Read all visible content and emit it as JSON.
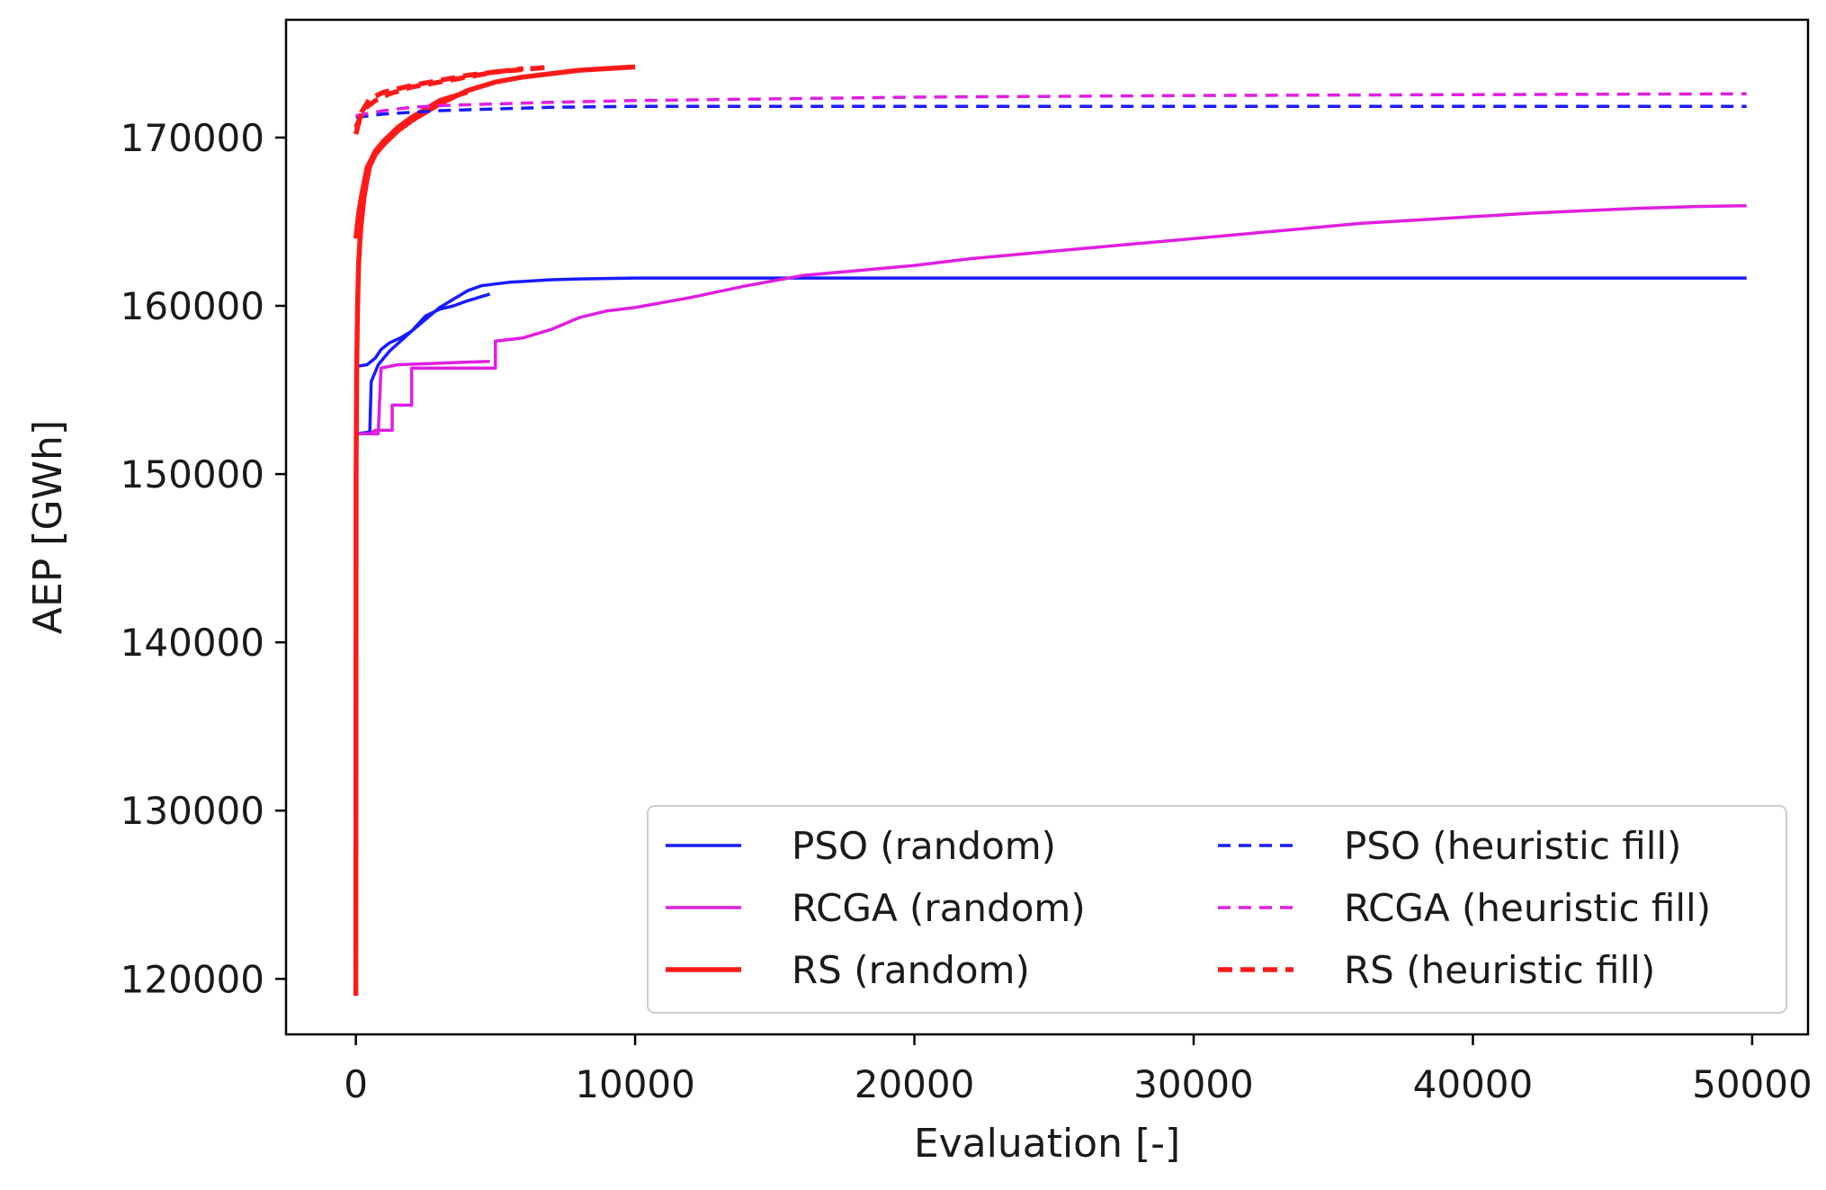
{
  "chart_data": {
    "type": "line",
    "title": "",
    "xlabel": "Evaluation [-]",
    "ylabel": "AEP [GWh]",
    "xlim": [
      -2500,
      52000
    ],
    "ylim": [
      116700,
      177000
    ],
    "xticks": [
      0,
      10000,
      20000,
      30000,
      40000,
      50000
    ],
    "xtick_labels": [
      "0",
      "10000",
      "20000",
      "30000",
      "40000",
      "50000"
    ],
    "yticks": [
      120000,
      130000,
      140000,
      150000,
      160000,
      170000
    ],
    "ytick_labels": [
      "120000",
      "130000",
      "140000",
      "150000",
      "160000",
      "170000"
    ],
    "grid": false,
    "legend_position": "lower-right",
    "colors": {
      "blue": "#1a1aff",
      "magenta": "#e01ee0",
      "red": "#ff1a1a",
      "axis": "#000000"
    },
    "series": [
      {
        "name": "PSO (random)",
        "color": "#1a1aff",
        "dash": "solid",
        "width": 3.5,
        "lines": [
          {
            "x": [
              0,
              400,
              700,
              900,
              1200,
              1600,
              2000,
              2500,
              3000,
              3500,
              4000,
              4500,
              5000,
              5500,
              6000,
              7000,
              8000,
              10000,
              15000,
              20000,
              30000,
              40000,
              49800
            ],
            "y": [
              156400,
              156500,
              156900,
              157400,
              157800,
              158100,
              158500,
              159200,
              159900,
              160400,
              160900,
              161200,
              161300,
              161400,
              161450,
              161550,
              161600,
              161650,
              161650,
              161650,
              161650,
              161650,
              161650
            ]
          },
          {
            "x": [
              0,
              500,
              550,
              800,
              1200,
              1600,
              2000,
              2500,
              3000,
              3500,
              4000,
              4800
            ],
            "y": [
              152400,
              152500,
              155500,
              156500,
              157300,
              157900,
              158500,
              159400,
              159800,
              160000,
              160300,
              160700
            ]
          }
        ]
      },
      {
        "name": "RCGA (random)",
        "color": "#e01ee0",
        "dash": "solid",
        "width": 3.5,
        "lines": [
          {
            "x": [
              0,
              500,
              700,
              1300,
              1300,
              2000,
              2000,
              5000,
              5000,
              6000,
              7000,
              8000,
              9000,
              10000,
              12000,
              14000,
              16000,
              18000,
              20000,
              22000,
              24000,
              26000,
              28000,
              30000,
              32000,
              34000,
              36000,
              38000,
              40000,
              42000,
              44000,
              46000,
              48000,
              49800
            ],
            "y": [
              152400,
              152400,
              152600,
              152600,
              154100,
              154100,
              156300,
              156300,
              157900,
              158100,
              158600,
              159300,
              159700,
              159900,
              160500,
              161200,
              161800,
              162100,
              162400,
              162800,
              163100,
              163400,
              163700,
              164000,
              164300,
              164600,
              164900,
              165100,
              165300,
              165500,
              165650,
              165800,
              165900,
              165950
            ]
          },
          {
            "x": [
              0,
              800,
              900,
              1500,
              4800
            ],
            "y": [
              152400,
              152400,
              156300,
              156500,
              156700
            ]
          }
        ]
      },
      {
        "name": "RS (random)",
        "color": "#ff1a1a",
        "dash": "solid",
        "width": 5.5,
        "lines": [
          {
            "x": [
              0,
              10,
              30,
              60,
              100,
              150,
              200,
              300,
              400,
              500,
              700,
              1000,
              1500,
              2000,
              3000,
              4000,
              5000,
              6000,
              7000,
              8000,
              9000,
              10000
            ],
            "y": [
              119000,
              150000,
              156000,
              160000,
              162500,
              164000,
              165000,
              166500,
              167500,
              168300,
              169000,
              169600,
              170400,
              171000,
              172000,
              172800,
              173300,
              173600,
              173800,
              174000,
              174100,
              174200
            ]
          },
          {
            "x": [
              0,
              100,
              200,
              400,
              700,
              1000,
              1500,
              2000,
              3000,
              4000
            ],
            "y": [
              164000,
              165500,
              166500,
              168200,
              169200,
              169800,
              170600,
              171200,
              172200,
              172700
            ]
          }
        ]
      },
      {
        "name": "PSO (heuristic fill)",
        "color": "#1a1aff",
        "dash": "dashed",
        "width": 3.5,
        "lines": [
          {
            "x": [
              0,
              1000,
              2000,
              3000,
              5000,
              7000,
              10000,
              15000,
              20000,
              30000,
              40000,
              49800
            ],
            "y": [
              171200,
              171400,
              171500,
              171600,
              171700,
              171800,
              171850,
              171850,
              171850,
              171850,
              171850,
              171850
            ]
          }
        ]
      },
      {
        "name": "RCGA (heuristic fill)",
        "color": "#e01ee0",
        "dash": "dashed",
        "width": 3.5,
        "lines": [
          {
            "x": [
              0,
              1000,
              2000,
              3000,
              5000,
              7000,
              10000,
              15000,
              20000,
              30000,
              40000,
              49800
            ],
            "y": [
              171300,
              171600,
              171800,
              171900,
              172000,
              172100,
              172200,
              172300,
              172400,
              172500,
              172550,
              172600
            ]
          }
        ]
      },
      {
        "name": "RS (heuristic fill)",
        "color": "#ff1a1a",
        "dash": "dashed",
        "width": 5.5,
        "lines": [
          {
            "x": [
              0,
              200,
              500,
              1000,
              1500,
              2000,
              3000,
              4000,
              5000,
              6000,
              7000
            ],
            "y": [
              170200,
              171500,
              172300,
              172700,
              172900,
              173100,
              173400,
              173700,
              173900,
              174050,
              174200
            ]
          },
          {
            "x": [
              0,
              300,
              700,
              1200,
              2000,
              3000,
              4000,
              5000,
              6000
            ],
            "y": [
              170600,
              171700,
              172200,
              172600,
              173000,
              173300,
              173600,
              173900,
              174100
            ]
          }
        ]
      }
    ],
    "legend": {
      "columns": [
        [
          "PSO (random)",
          "RCGA (random)",
          "RS (random)"
        ],
        [
          "PSO (heuristic fill)",
          "RCGA (heuristic fill)",
          "RS (heuristic fill)"
        ]
      ]
    }
  }
}
